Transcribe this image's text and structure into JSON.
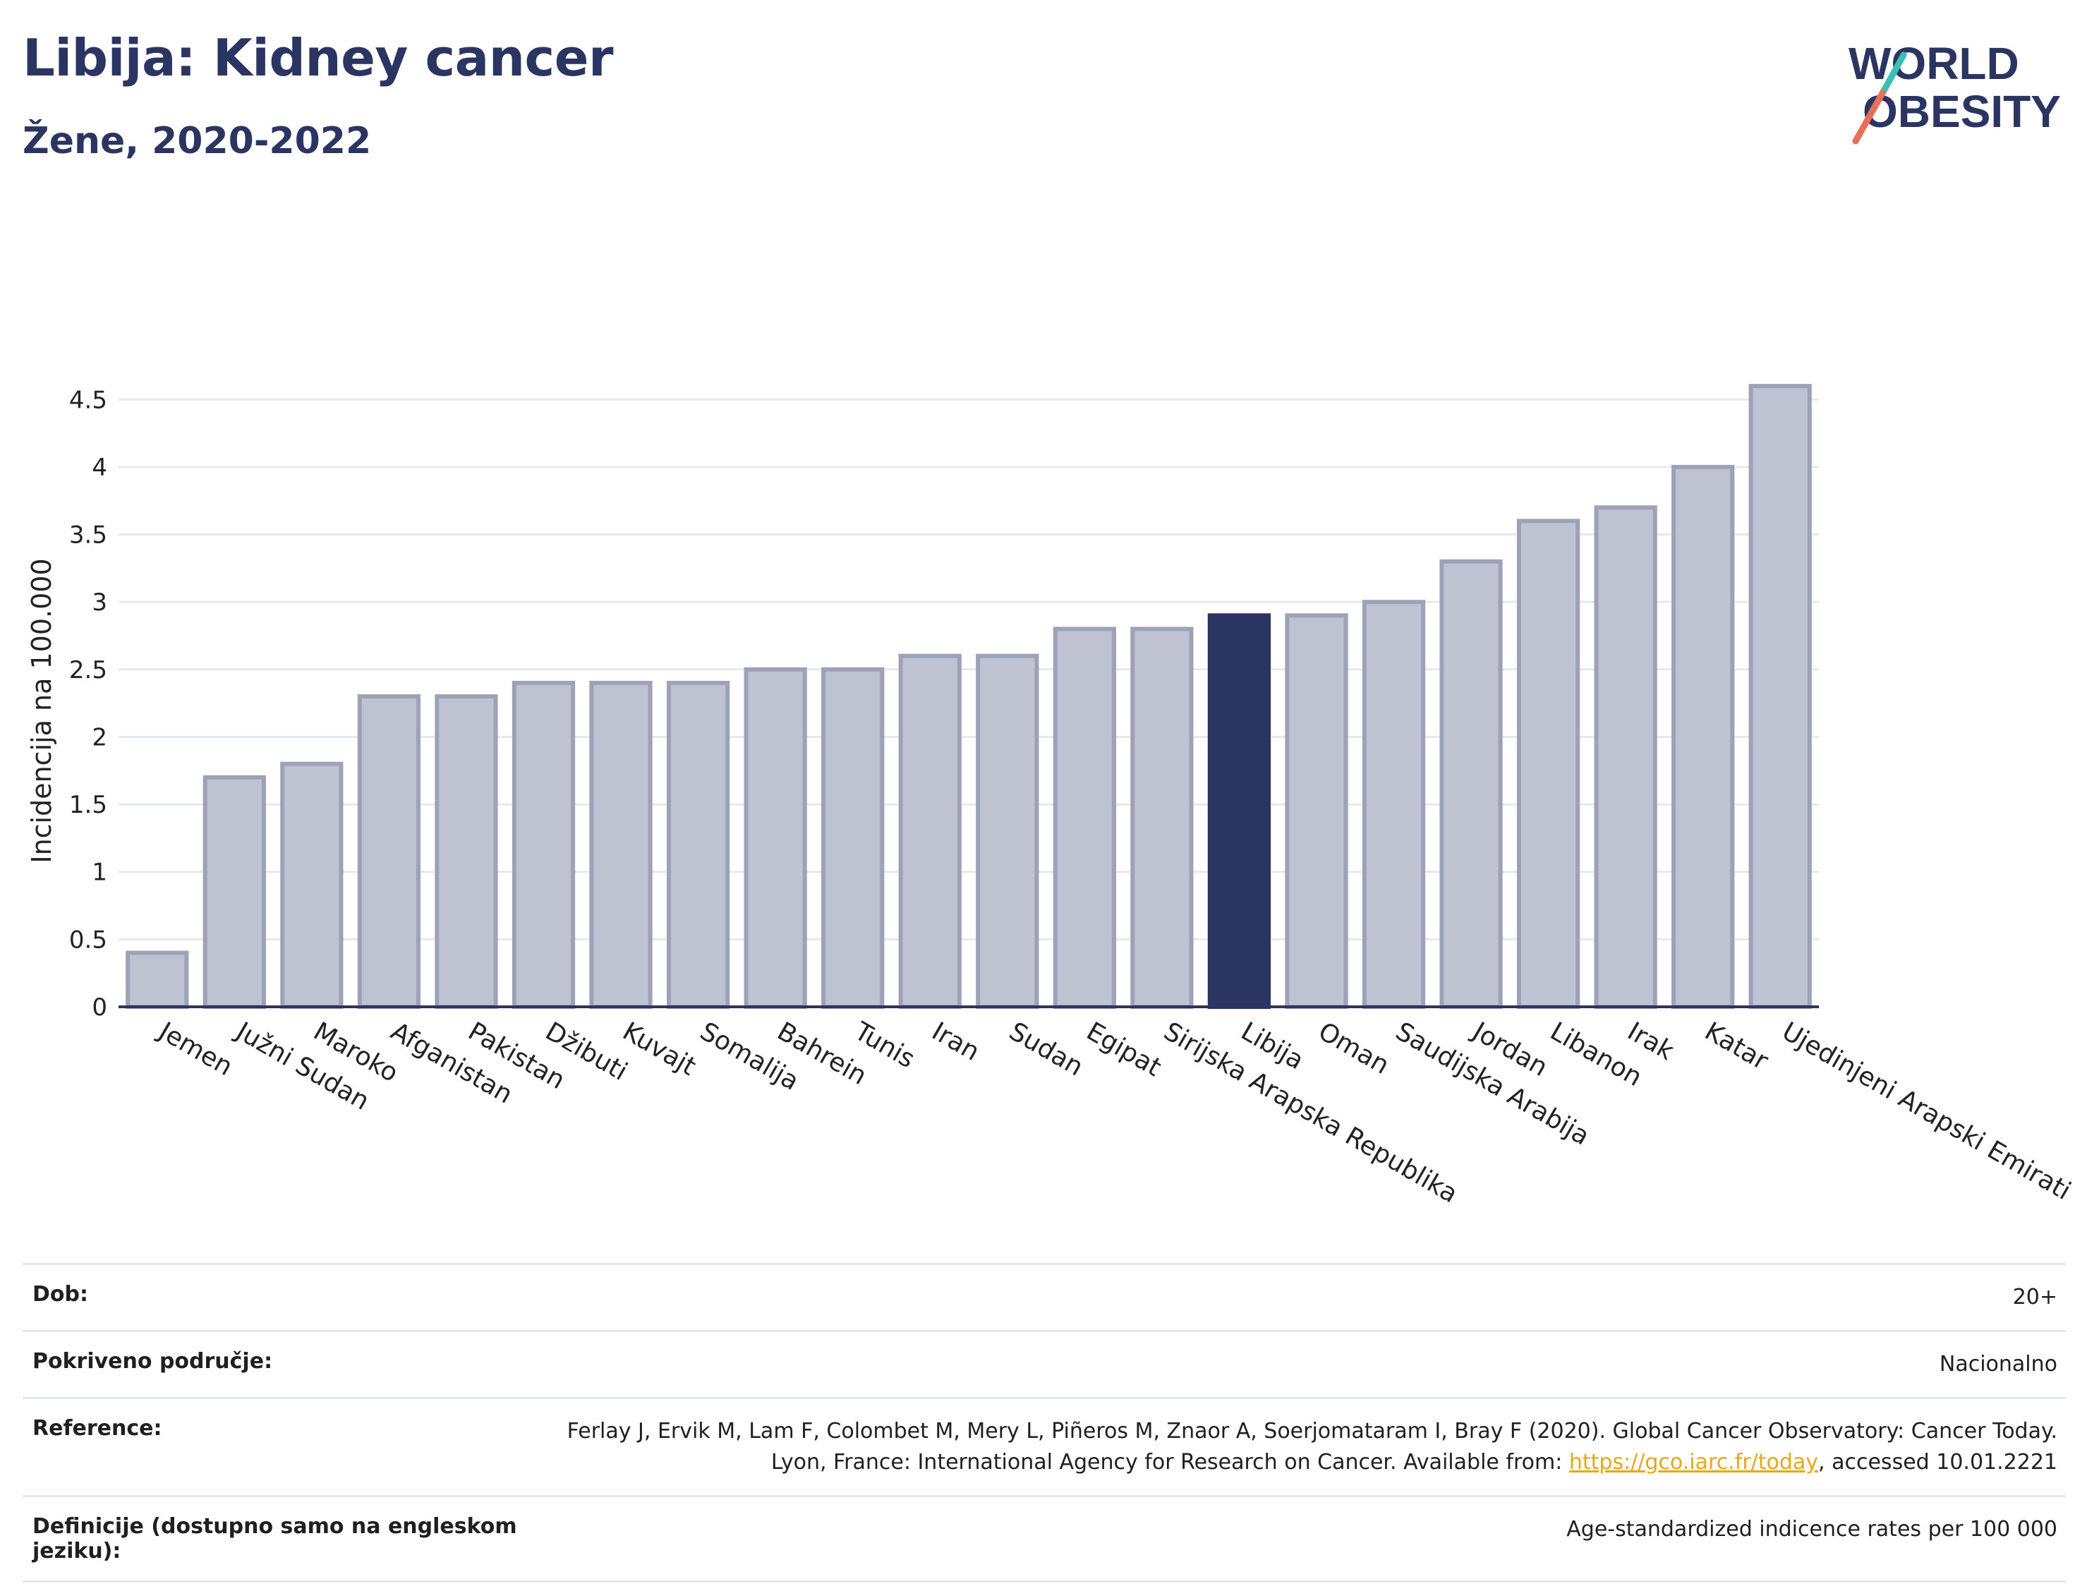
{
  "header": {
    "title": "Libija: Kidney cancer",
    "subtitle": "Žene, 2020-2022"
  },
  "logo": {
    "line1": "WORLD",
    "line2": "OBESITY"
  },
  "chart_data": {
    "type": "bar",
    "ylabel": "Incidencija na 100.000",
    "ylim": [
      0,
      4.7
    ],
    "yticks": [
      0,
      0.5,
      1,
      1.5,
      2,
      2.5,
      3,
      3.5,
      4,
      4.5
    ],
    "ytick_labels": [
      "0",
      "0.5",
      "1",
      "1.5",
      "2",
      "2.5",
      "3",
      "3.5",
      "4",
      "4.5"
    ],
    "grid": true,
    "highlight": "Libija",
    "colors": {
      "bar": "#bfc2d0",
      "bar_edge": "#9da2b8",
      "highlight": "#2b3561",
      "grid": "#e8e9ee",
      "axis": "#2b3561"
    },
    "categories": [
      "Jemen",
      "Južni Sudan",
      "Maroko",
      "Afganistan",
      "Pakistan",
      "Džibuti",
      "Kuvajt",
      "Somalija",
      "Bahrein",
      "Tunis",
      "Iran",
      "Sudan",
      "Egipat",
      "Sirijska Arapska Republika",
      "Libija",
      "Oman",
      "Saudijska Arabija",
      "Jordan",
      "Libanon",
      "Irak",
      "Katar",
      "Ujedinjeni Arapski Emirati"
    ],
    "values": [
      0.4,
      1.7,
      1.8,
      2.3,
      2.3,
      2.4,
      2.4,
      2.4,
      2.5,
      2.5,
      2.6,
      2.6,
      2.8,
      2.8,
      2.9,
      2.9,
      3.0,
      3.3,
      3.6,
      3.7,
      4.0,
      4.6
    ]
  },
  "meta": {
    "age_label": "Dob:",
    "age_value": "20+",
    "coverage_label": "Pokriveno područje:",
    "coverage_value": "Nacionalno",
    "reference_label": "Reference:",
    "reference_text_1": "Ferlay J, Ervik M, Lam F, Colombet M, Mery L, Piñeros M, Znaor A, Soerjomataram I, Bray F (2020). Global Cancer Observatory: Cancer Today. Lyon, France: International Agency for Research on Cancer. Available from: ",
    "reference_link": "https://gco.iarc.fr/today",
    "reference_text_2": ", accessed 10.01.2221",
    "definition_label": "Definicije (dostupno samo na engleskom jeziku):",
    "definition_value": "Age-standardized indicence rates per 100 000"
  }
}
